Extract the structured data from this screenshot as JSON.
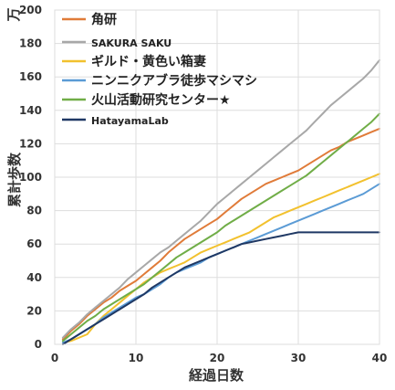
{
  "chart_data": {
    "type": "line",
    "xlabel": "経過日数",
    "ylabel": "累計歩数",
    "yunit": "万",
    "xlim": [
      0,
      40
    ],
    "ylim": [
      0,
      200
    ],
    "xticks": [
      "0",
      "10",
      "20",
      "30",
      "40"
    ],
    "yticks": [
      "0",
      "20",
      "40",
      "60",
      "80",
      "100",
      "120",
      "140",
      "160",
      "180",
      "200"
    ],
    "grid": true,
    "legend_position": "top-left",
    "series": [
      {
        "name": "角研",
        "color": "#e07b39",
        "x": [
          1,
          2,
          3,
          4,
          5,
          6,
          7,
          8,
          9,
          10,
          11,
          12,
          13,
          14,
          15,
          16,
          17,
          18,
          19,
          20,
          21,
          22,
          23,
          24,
          25,
          26,
          27,
          28,
          29,
          30,
          31,
          32,
          33,
          34,
          35,
          36,
          37,
          38,
          39,
          40
        ],
        "y": [
          3,
          8,
          12,
          17,
          21,
          25,
          28,
          32,
          35,
          38,
          42,
          46,
          50,
          55,
          59,
          63,
          66,
          69,
          72,
          75,
          79,
          83,
          87,
          90,
          93,
          96,
          98,
          100,
          102,
          104,
          107,
          110,
          113,
          116,
          118,
          121,
          123,
          125,
          127,
          129
        ]
      },
      {
        "name": "SAKURA SAKU",
        "color": "#a8a8a8",
        "x": [
          1,
          2,
          3,
          4,
          5,
          6,
          7,
          8,
          9,
          10,
          11,
          12,
          13,
          14,
          15,
          16,
          17,
          18,
          19,
          20,
          21,
          22,
          23,
          24,
          25,
          26,
          27,
          28,
          29,
          30,
          31,
          32,
          33,
          34,
          35,
          36,
          37,
          38,
          39,
          40
        ],
        "y": [
          4,
          9,
          13,
          18,
          22,
          26,
          30,
          34,
          39,
          43,
          47,
          51,
          55,
          58,
          62,
          66,
          70,
          74,
          79,
          84,
          88,
          92,
          96,
          100,
          104,
          108,
          112,
          116,
          120,
          124,
          128,
          133,
          138,
          143,
          147,
          151,
          155,
          159,
          164,
          170
        ]
      },
      {
        "name": "ギルド・黄色い箱妻",
        "color": "#f2c12e",
        "x": [
          1,
          2,
          3,
          4,
          5,
          6,
          7,
          8,
          9,
          10,
          11,
          12,
          13,
          14,
          15,
          16,
          17,
          18,
          19,
          20,
          21,
          22,
          23,
          24,
          25,
          26,
          27,
          28,
          29,
          30,
          31,
          32,
          33,
          34,
          35,
          36,
          37,
          38,
          39,
          40
        ],
        "y": [
          1,
          2,
          4,
          6,
          12,
          17,
          21,
          25,
          29,
          33,
          37,
          40,
          43,
          45,
          47,
          49,
          52,
          55,
          57,
          59,
          61,
          63,
          65,
          67,
          70,
          73,
          76,
          78,
          80,
          82,
          84,
          86,
          88,
          90,
          92,
          94,
          96,
          98,
          100,
          102
        ]
      },
      {
        "name": "ニンニクアブラ徒歩マシマシ",
        "color": "#5b9bd5",
        "x": [
          1,
          2,
          3,
          4,
          5,
          6,
          7,
          8,
          9,
          10,
          11,
          12,
          13,
          14,
          15,
          16,
          17,
          18,
          19,
          20,
          21,
          22,
          23,
          24,
          25,
          26,
          27,
          28,
          29,
          30,
          31,
          32,
          33,
          34,
          35,
          36,
          37,
          38,
          39,
          40
        ],
        "y": [
          1,
          3,
          6,
          9,
          12,
          16,
          19,
          22,
          25,
          28,
          30,
          33,
          36,
          40,
          43,
          45,
          47,
          49,
          52,
          54,
          56,
          58,
          60,
          62,
          64,
          66,
          68,
          70,
          72,
          74,
          76,
          78,
          80,
          82,
          84,
          86,
          88,
          90,
          93,
          96
        ]
      },
      {
        "name": "火山活動研究センター★",
        "color": "#70ad47",
        "x": [
          1,
          2,
          3,
          4,
          5,
          6,
          7,
          8,
          9,
          10,
          11,
          12,
          13,
          14,
          15,
          16,
          17,
          18,
          19,
          20,
          21,
          22,
          23,
          24,
          25,
          26,
          27,
          28,
          29,
          30,
          31,
          32,
          33,
          34,
          35,
          36,
          37,
          38,
          39,
          40
        ],
        "y": [
          2,
          6,
          10,
          14,
          17,
          21,
          24,
          27,
          30,
          33,
          36,
          40,
          44,
          48,
          52,
          55,
          58,
          61,
          64,
          67,
          71,
          74,
          77,
          80,
          83,
          86,
          89,
          92,
          95,
          98,
          101,
          105,
          109,
          113,
          117,
          121,
          125,
          129,
          133,
          138
        ]
      },
      {
        "name": "HatayamaLab",
        "color": "#1f3864",
        "x": [
          1,
          2,
          3,
          4,
          5,
          6,
          7,
          8,
          9,
          10,
          11,
          12,
          13,
          14,
          15,
          16,
          17,
          18,
          19,
          20,
          21,
          22,
          23,
          24,
          25,
          26,
          27,
          28,
          29,
          30,
          31,
          32,
          33,
          34,
          35,
          36,
          37,
          38,
          39,
          40
        ],
        "y": [
          0,
          3,
          6,
          9,
          12,
          15,
          18,
          21,
          24,
          27,
          30,
          34,
          37,
          40,
          43,
          46,
          48,
          50,
          52,
          54,
          56,
          58,
          60,
          61,
          62,
          63,
          64,
          65,
          66,
          67,
          67,
          67,
          67,
          67,
          67,
          67,
          67,
          67,
          67,
          67
        ]
      }
    ]
  }
}
